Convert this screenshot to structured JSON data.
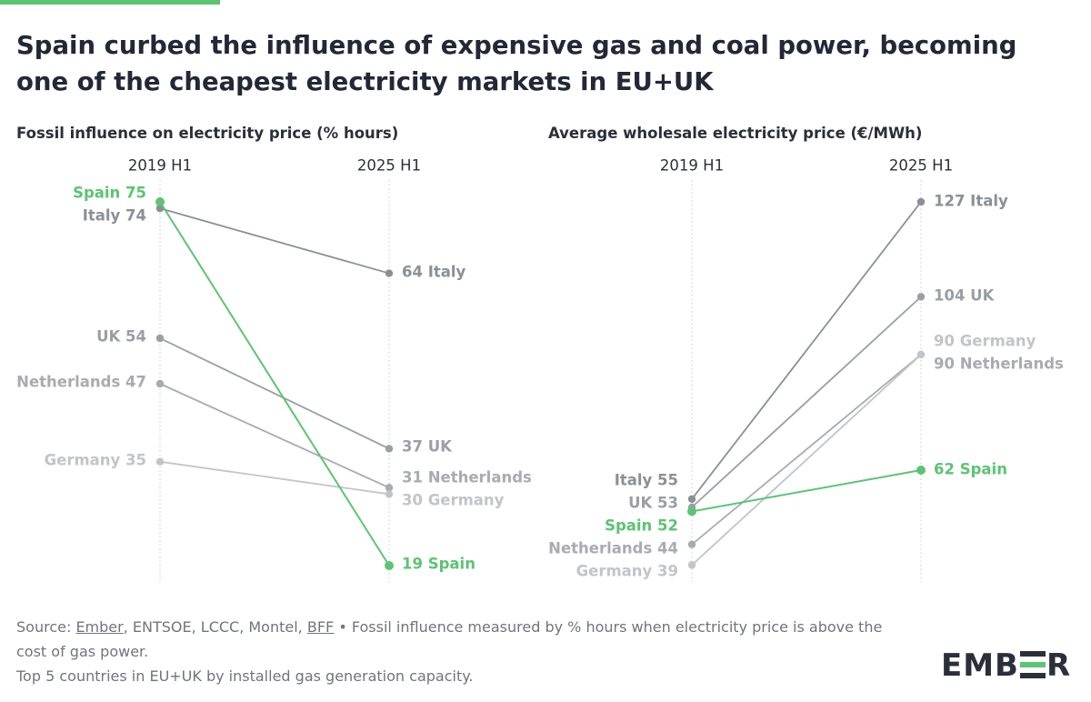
{
  "title": "Spain curbed the influence of expensive gas and coal power, becoming one of the cheapest electricity markets in EU+UK",
  "colors": {
    "accent": "#5cc473",
    "spain": "#5cc473",
    "italy": "#8b8f98",
    "uk": "#9a9ea6",
    "netherlands": "#a8abb2",
    "germany": "#c2c4ca",
    "grid": "#cfd2d7"
  },
  "chart_data": [
    {
      "type": "line",
      "variant": "slope",
      "title": "Fossil influence on electricity price (% hours)",
      "categories": [
        "2019 H1",
        "2025 H1"
      ],
      "series": [
        {
          "name": "Spain",
          "values": [
            75,
            19
          ],
          "start_label": "Spain 75",
          "end_label": "19 Spain",
          "color": "#5cc473"
        },
        {
          "name": "Italy",
          "values": [
            74,
            64
          ],
          "start_label": "Italy 74",
          "end_label": "64 Italy",
          "color": "#8b8f98"
        },
        {
          "name": "UK",
          "values": [
            54,
            37
          ],
          "start_label": "UK 54",
          "end_label": "37 UK",
          "color": "#9a9ea6"
        },
        {
          "name": "Netherlands",
          "values": [
            47,
            31
          ],
          "start_label": "Netherlands 47",
          "end_label": "31 Netherlands",
          "color": "#a8abb2"
        },
        {
          "name": "Germany",
          "values": [
            35,
            30
          ],
          "start_label": "Germany 35",
          "end_label": "30 Germany",
          "color": "#c2c4ca"
        }
      ]
    },
    {
      "type": "line",
      "variant": "slope",
      "title": "Average wholesale electricity price (€/MWh)",
      "categories": [
        "2019 H1",
        "2025 H1"
      ],
      "series": [
        {
          "name": "Italy",
          "values": [
            55,
            127
          ],
          "start_label": "Italy 55",
          "end_label": "127 Italy",
          "color": "#8b8f98"
        },
        {
          "name": "UK",
          "values": [
            53,
            104
          ],
          "start_label": "UK 53",
          "end_label": "104 UK",
          "color": "#9a9ea6"
        },
        {
          "name": "Spain",
          "values": [
            52,
            62
          ],
          "start_label": "Spain 52",
          "end_label": "62 Spain",
          "color": "#5cc473"
        },
        {
          "name": "Netherlands",
          "values": [
            44,
            90
          ],
          "start_label": "Netherlands 44",
          "end_label": "90 Netherlands",
          "color": "#a8abb2"
        },
        {
          "name": "Germany",
          "values": [
            39,
            90
          ],
          "start_label": "Germany 39",
          "end_label": "90 Germany",
          "color": "#c2c4ca"
        }
      ]
    }
  ],
  "footer": {
    "source_prefix": "Source: ",
    "source_link_ember": "Ember",
    "source_middle": ", ENTSOE, LCCC, Montel, ",
    "source_link_bff": "BFF",
    "source_suffix": " • Fossil influence measured by % hours when electricity price is above the cost of gas power.",
    "note": "Top 5 countries in EU+UK by installed gas generation capacity."
  },
  "logo": {
    "left": "EMB",
    "right": "R"
  }
}
